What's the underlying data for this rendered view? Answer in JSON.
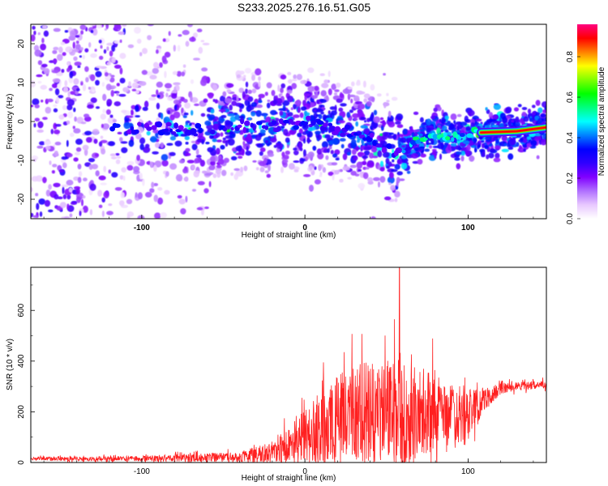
{
  "title": "S233.2025.276.16.51.G05",
  "chart_data": [
    {
      "type": "heatmap",
      "name": "spectrogram",
      "xlabel": "Height of straight line (km)",
      "ylabel": "Frequency (Hz)",
      "xlim": [
        -168,
        148
      ],
      "ylim": [
        -25,
        25
      ],
      "xticks": [
        -100,
        0,
        100
      ],
      "yticks": [
        -20,
        -10,
        0,
        10,
        20
      ],
      "colorbar": {
        "label": "Normalized spectral amplitude",
        "range": [
          0,
          0.96
        ],
        "ticks": [
          0.0,
          0.2,
          0.4,
          0.6,
          0.8
        ],
        "tick_labels": [
          "0.0",
          "0.2",
          "0.4",
          "0.6",
          "0.8"
        ],
        "colormap": [
          "#ffffff",
          "#e8c8ff",
          "#b070ff",
          "#8000ff",
          "#3000ff",
          "#0000ff",
          "#0080ff",
          "#00ffff",
          "#00ff80",
          "#00ff00",
          "#80ff00",
          "#ffff00",
          "#ff8000",
          "#ff0000",
          "#ff0080"
        ]
      },
      "ridge": {
        "description": "dominant frequency track",
        "x": [
          -118,
          -100,
          -80,
          -60,
          -40,
          -20,
          0,
          20,
          40,
          55,
          65,
          75,
          85,
          95,
          105,
          115,
          130,
          148
        ],
        "y": [
          -2,
          -1.5,
          -2,
          -2.5,
          -1,
          -1.5,
          0,
          -2,
          -4,
          -8,
          -6,
          -3,
          -3.5,
          -5,
          -3,
          -2.5,
          -2.5,
          -1.5
        ],
        "peak_amplitude": 0.96
      }
    },
    {
      "type": "line",
      "name": "snr",
      "xlabel": "Height of straight line (km)",
      "ylabel": "SNR (10 * v/v)",
      "xlim": [
        -168,
        148
      ],
      "ylim": [
        0,
        770
      ],
      "xticks": [
        -100,
        0,
        100
      ],
      "yticks": [
        0,
        200,
        400,
        600
      ],
      "color": "#ff0000",
      "envelope": {
        "x": [
          -168,
          -140,
          -110,
          -80,
          -60,
          -40,
          -30,
          -20,
          -10,
          0,
          10,
          20,
          30,
          40,
          50,
          60,
          70,
          80,
          90,
          100,
          110,
          120,
          130,
          148
        ],
        "base": [
          15,
          15,
          15,
          18,
          20,
          22,
          30,
          40,
          70,
          100,
          130,
          160,
          200,
          200,
          210,
          210,
          200,
          200,
          180,
          180,
          250,
          290,
          300,
          310
        ],
        "amplitude": [
          12,
          15,
          18,
          25,
          30,
          35,
          60,
          80,
          130,
          200,
          280,
          330,
          360,
          350,
          380,
          420,
          340,
          280,
          230,
          200,
          80,
          40,
          30,
          30
        ]
      },
      "peak": {
        "x": 58,
        "y": 770
      }
    }
  ]
}
